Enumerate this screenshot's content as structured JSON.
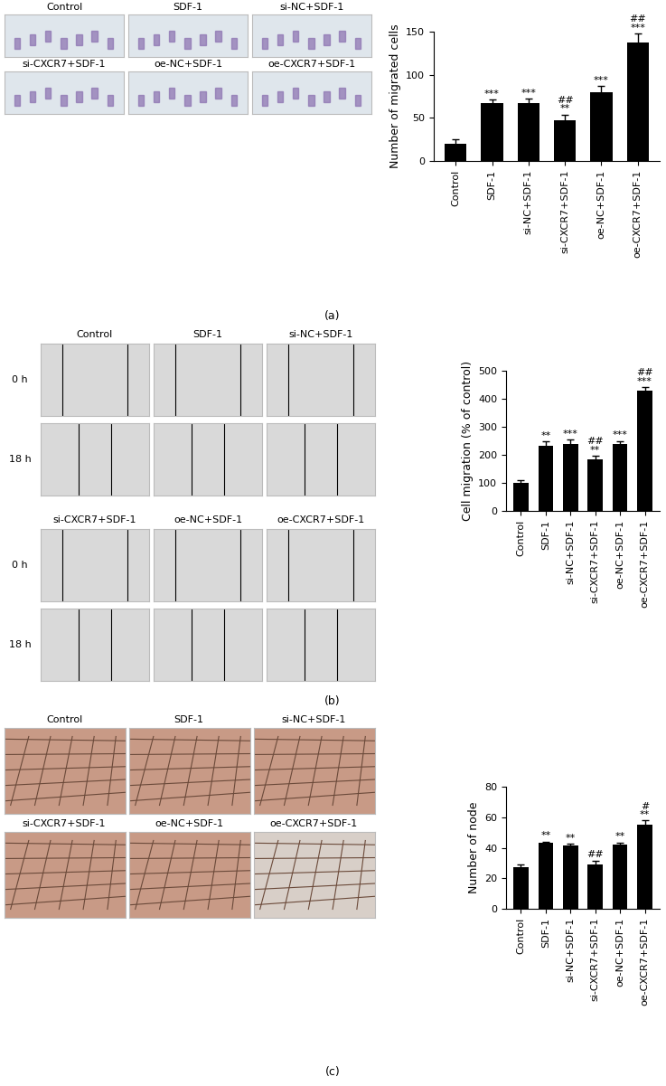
{
  "chart_data": [
    {
      "type": "bar",
      "panel_label": "(a)",
      "image_titles": [
        "Control",
        "SDF-1",
        "si-NC+SDF-1",
        "si-CXCR7+SDF-1",
        "oe-NC+SDF-1",
        "oe-CXCR7+SDF-1"
      ],
      "y_label": "Number of migrated cells",
      "categories": [
        "Control",
        "SDF-1",
        "si-NC+SDF-1",
        "si-CXCR7+SDF-1",
        "oe-NC+SDF-1",
        "oe-CXCR7+SDF-1"
      ],
      "values": [
        20,
        67,
        67,
        47,
        80,
        137
      ],
      "errors": [
        5,
        4,
        5,
        7,
        7,
        11
      ],
      "significance": [
        [],
        [
          "***"
        ],
        [
          "***"
        ],
        [
          "##",
          "**"
        ],
        [
          "***"
        ],
        [
          "##",
          "***"
        ]
      ],
      "color": "#000000",
      "ylim": [
        0,
        150
      ],
      "yticks": [
        0,
        50,
        100,
        150
      ],
      "grid": false
    },
    {
      "type": "bar",
      "panel_label": "(b)",
      "image_titles": [
        "Control",
        "SDF-1",
        "si-NC+SDF-1",
        "si-CXCR7+SDF-1",
        "oe-NC+SDF-1",
        "oe-CXCR7+SDF-1"
      ],
      "time_points": [
        "0 h",
        "18 h"
      ],
      "y_label": "Cell migration (% of control)",
      "categories": [
        "Control",
        "SDF-1",
        "si-NC+SDF-1",
        "si-CXCR7+SDF-1",
        "oe-NC+SDF-1",
        "oe-CXCR7+SDF-1"
      ],
      "values": [
        100,
        232,
        240,
        185,
        238,
        430
      ],
      "errors": [
        10,
        15,
        15,
        12,
        12,
        12
      ],
      "significance": [
        [],
        [
          "**"
        ],
        [
          "***"
        ],
        [
          "##",
          "**"
        ],
        [
          "***"
        ],
        [
          "##",
          "***"
        ]
      ],
      "color": "#000000",
      "ylim": [
        0,
        500
      ],
      "yticks": [
        0,
        100,
        200,
        300,
        400,
        500
      ],
      "grid": false
    },
    {
      "type": "bar",
      "panel_label": "(c)",
      "image_titles": [
        "Control",
        "SDF-1",
        "si-NC+SDF-1",
        "si-CXCR7+SDF-1",
        "oe-NC+SDF-1",
        "oe-CXCR7+SDF-1"
      ],
      "y_label": "Number of node",
      "categories": [
        "Control",
        "SDF-1",
        "si-NC+SDF-1",
        "si-CXCR7+SDF-1",
        "oe-NC+SDF-1",
        "oe-CXCR7+SDF-1"
      ],
      "values": [
        27,
        43,
        41.5,
        29,
        42,
        55
      ],
      "errors": [
        2,
        1,
        1,
        2.5,
        1.5,
        3
      ],
      "significance": [
        [],
        [
          "**"
        ],
        [
          "**"
        ],
        [
          "##"
        ],
        [
          "**"
        ],
        [
          "#",
          "**"
        ]
      ],
      "color": "#000000",
      "ylim": [
        0,
        80
      ],
      "yticks": [
        0,
        20,
        40,
        60,
        80
      ],
      "grid": false
    }
  ]
}
